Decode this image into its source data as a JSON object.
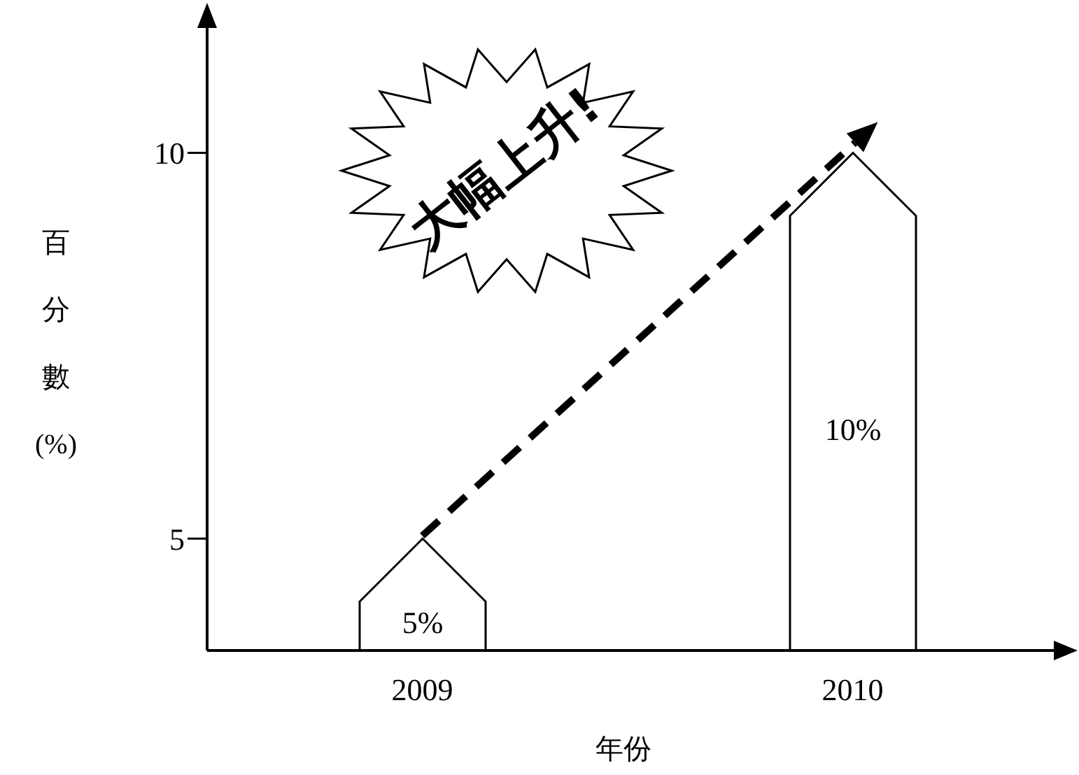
{
  "chart_data": {
    "type": "bar",
    "categories": [
      "2009",
      "2010"
    ],
    "values": [
      5,
      10
    ],
    "color": "#ffffff",
    "value_labels": [
      "5%",
      "10%"
    ],
    "ylim": [
      3.55,
      11.8
    ],
    "yticks": [
      5,
      10
    ],
    "xlabel": "年份",
    "ylabel": "百分數(%)",
    "annotations": [
      "大幅上升!"
    ]
  }
}
